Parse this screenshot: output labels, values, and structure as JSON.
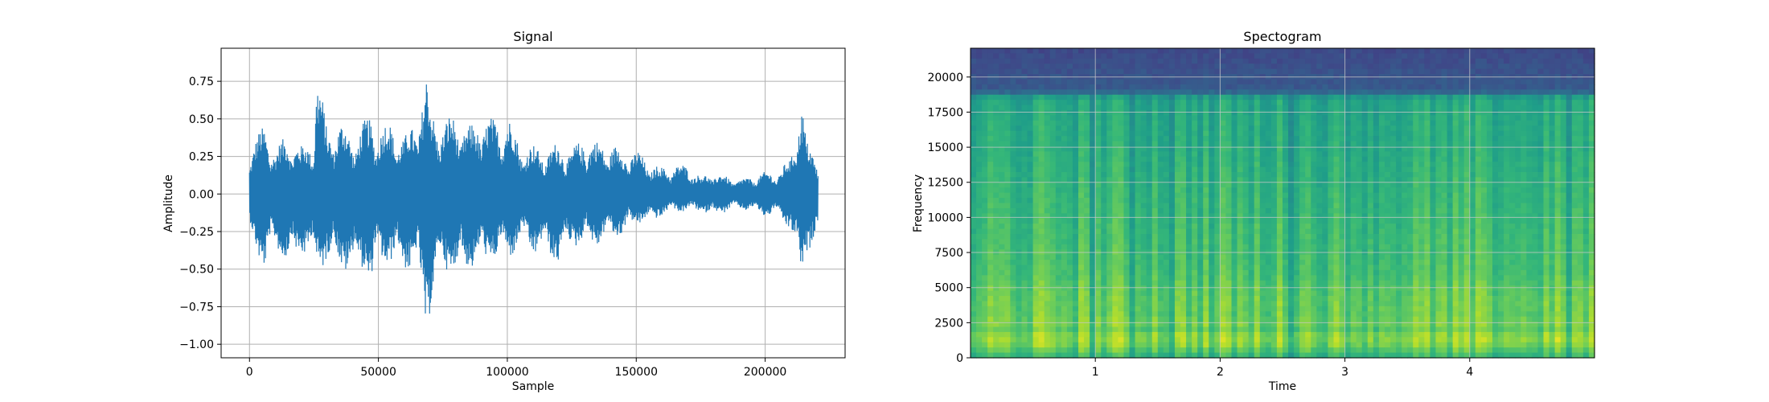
{
  "chart_data": [
    {
      "type": "line",
      "title": "Signal",
      "xlabel": "Sample",
      "ylabel": "Amplitude",
      "grid": true,
      "xlim": [
        -11000,
        231000
      ],
      "ylim": [
        -1.09,
        0.97
      ],
      "xticks": [
        0,
        50000,
        100000,
        150000,
        200000
      ],
      "xtick_labels": [
        "0",
        "50000",
        "100000",
        "150000",
        "200000"
      ],
      "yticks": [
        -1.0,
        -0.75,
        -0.5,
        -0.25,
        0.0,
        0.25,
        0.5,
        0.75
      ],
      "ytick_labels": [
        "−1.00",
        "−0.75",
        "−0.50",
        "−0.25",
        "0.00",
        "0.25",
        "0.50",
        "0.75"
      ],
      "color": "#1f77b4",
      "series": [
        {
          "x_range": [
            0,
            220500
          ],
          "envelope": {
            "x": [
              0,
              2000,
              6000,
              10000,
              15000,
              20000,
              25000,
              26000,
              30000,
              35000,
              40000,
              45000,
              47000,
              50000,
              55000,
              60000,
              65000,
              69000,
              70000,
              75000,
              80000,
              85000,
              90000,
              95000,
              100000,
              105000,
              110000,
              115000,
              120000,
              125000,
              130000,
              135000,
              140000,
              145000,
              150000,
              155000,
              160000,
              165000,
              170000,
              175000,
              180000,
              185000,
              190000,
              195000,
              200000,
              205000,
              210000,
              214000,
              216000,
              220500
            ],
            "upper": [
              0.3,
              0.37,
              0.48,
              0.3,
              0.42,
              0.32,
              0.4,
              0.89,
              0.45,
              0.5,
              0.4,
              0.5,
              0.55,
              0.45,
              0.5,
              0.38,
              0.55,
              0.82,
              0.6,
              0.5,
              0.55,
              0.45,
              0.55,
              0.5,
              0.55,
              0.35,
              0.33,
              0.3,
              0.35,
              0.3,
              0.4,
              0.35,
              0.35,
              0.3,
              0.3,
              0.22,
              0.18,
              0.2,
              0.2,
              0.12,
              0.15,
              0.12,
              0.1,
              0.12,
              0.15,
              0.15,
              0.25,
              0.71,
              0.35,
              0.25
            ],
            "lower": [
              -0.3,
              -0.35,
              -0.54,
              -0.35,
              -0.5,
              -0.4,
              -0.45,
              -0.55,
              -0.45,
              -0.5,
              -0.55,
              -0.5,
              -0.7,
              -0.45,
              -0.5,
              -0.5,
              -0.55,
              -1.0,
              -0.78,
              -0.5,
              -0.58,
              -0.5,
              -0.5,
              -0.45,
              -0.45,
              -0.35,
              -0.4,
              -0.42,
              -0.48,
              -0.35,
              -0.35,
              -0.35,
              -0.3,
              -0.28,
              -0.2,
              -0.2,
              -0.15,
              -0.12,
              -0.12,
              -0.12,
              -0.15,
              -0.12,
              -0.1,
              -0.12,
              -0.15,
              -0.15,
              -0.25,
              -0.63,
              -0.4,
              -0.3
            ]
          }
        }
      ]
    },
    {
      "type": "heatmap",
      "title": "Spectogram",
      "xlabel": "Time",
      "ylabel": "Frequency",
      "grid": true,
      "xlim": [
        0,
        5
      ],
      "ylim": [
        0,
        22050
      ],
      "xticks": [
        1,
        2,
        3,
        4
      ],
      "xtick_labels": [
        "1",
        "2",
        "3",
        "4"
      ],
      "yticks": [
        0,
        2500,
        5000,
        7500,
        10000,
        12500,
        15000,
        17500,
        20000
      ],
      "ytick_labels": [
        "0",
        "2500",
        "5000",
        "7500",
        "10000",
        "12500",
        "15000",
        "17500",
        "20000"
      ],
      "colormap": "viridis",
      "cutoff_frequency": 18700,
      "band_intensity": {
        "frequency": [
          0,
          1000,
          1500,
          2000,
          2500,
          3000,
          4000,
          5000,
          6000,
          8000,
          10000,
          12000,
          15000,
          17000,
          18500,
          19000,
          22050
        ],
        "level": [
          0.72,
          0.92,
          0.95,
          0.85,
          0.9,
          0.86,
          0.86,
          0.84,
          0.8,
          0.78,
          0.76,
          0.74,
          0.7,
          0.69,
          0.66,
          0.28,
          0.22
        ]
      }
    }
  ]
}
